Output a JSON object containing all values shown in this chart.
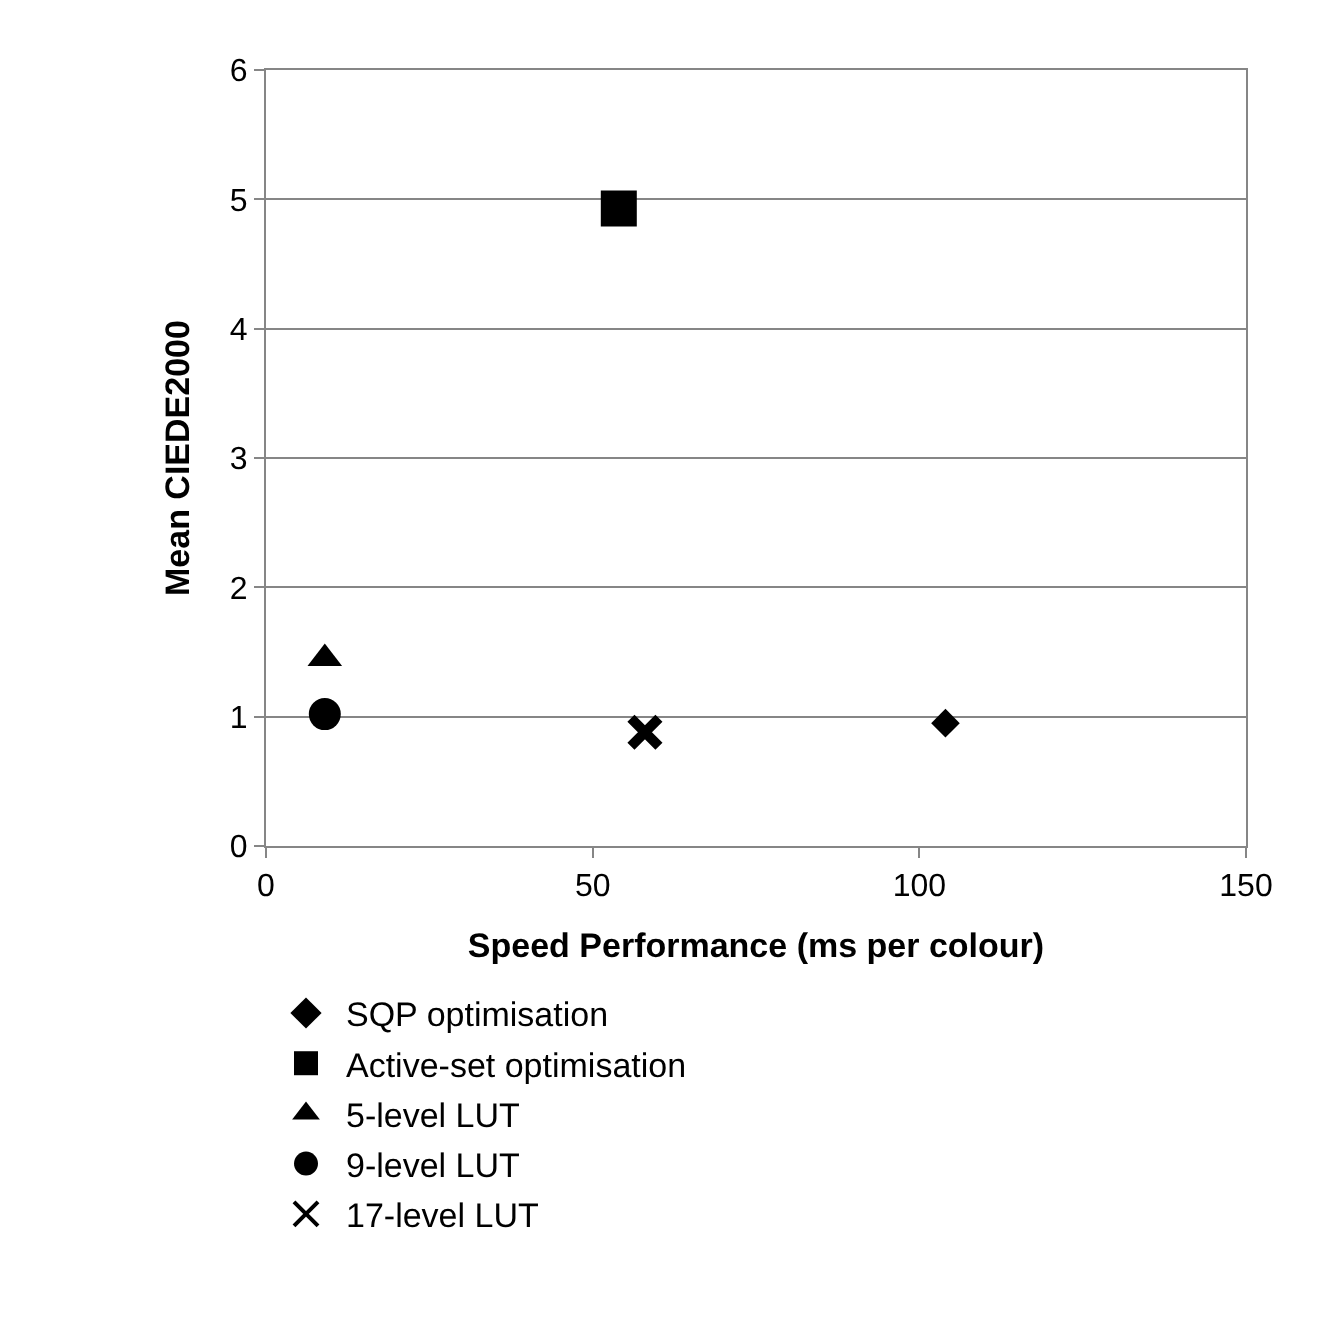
{
  "chart_data": {
    "type": "scatter",
    "xlabel": "Speed Performance (ms per colour)",
    "ylabel": "Mean CIEDE2000",
    "xlim": [
      0,
      150
    ],
    "xticks": [
      0,
      50,
      100,
      150
    ],
    "ylim": [
      0,
      6
    ],
    "yticks": [
      0,
      1,
      2,
      3,
      4,
      5,
      6
    ],
    "grid": "y",
    "legend": "bottom",
    "series": [
      {
        "name": "SQP optimisation",
        "color": "#000000",
        "marker": "diamond",
        "x": [
          104
        ],
        "values": [
          0.95
        ]
      },
      {
        "name": "Active-set optimisation",
        "color": "#000000",
        "marker": "square",
        "x": [
          54
        ],
        "values": [
          4.93
        ]
      },
      {
        "name": "5-level LUT",
        "color": "#000000",
        "marker": "triangle",
        "x": [
          9
        ],
        "values": [
          1.45
        ]
      },
      {
        "name": "9-level LUT",
        "color": "#000000",
        "marker": "circle",
        "x": [
          9
        ],
        "values": [
          1.02
        ]
      },
      {
        "name": "17-level LUT",
        "color": "#000000",
        "marker": "cross",
        "x": [
          58
        ],
        "values": [
          0.88
        ]
      }
    ]
  }
}
